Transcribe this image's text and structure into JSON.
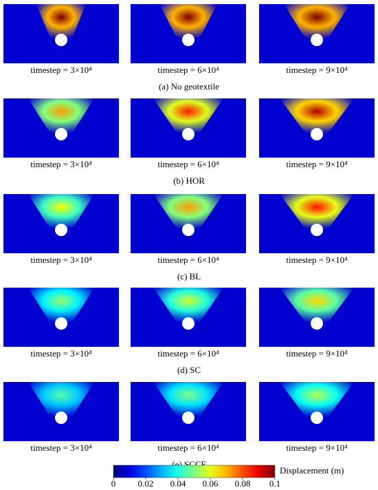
{
  "rows": [
    {
      "caption": "(a) No geotextile",
      "panels": [
        {
          "label": "timestep = 3×10⁴"
        },
        {
          "label": "timestep = 6×10⁴"
        },
        {
          "label": "timestep = 9×10⁴"
        }
      ]
    },
    {
      "caption": "(b) HOR",
      "panels": [
        {
          "label": "timestep = 3×10⁴"
        },
        {
          "label": "timestep = 6×10⁴"
        },
        {
          "label": "timestep = 9×10⁴"
        }
      ]
    },
    {
      "caption": "(c) BL",
      "panels": [
        {
          "label": "timestep = 3×10⁴"
        },
        {
          "label": "timestep = 6×10⁴"
        },
        {
          "label": "timestep = 9×10⁴"
        }
      ]
    },
    {
      "caption": "(d) SC",
      "panels": [
        {
          "label": "timestep = 3×10⁴"
        },
        {
          "label": "timestep = 6×10⁴"
        },
        {
          "label": "timestep = 9×10⁴"
        }
      ]
    },
    {
      "caption": "(e) SCCF",
      "panels": [
        {
          "label": "timestep = 3×10⁴"
        },
        {
          "label": "timestep = 6×10⁴"
        },
        {
          "label": "timestep = 9×10⁴"
        }
      ]
    }
  ],
  "colorbar": {
    "label": "Displacement (m)",
    "lim": [
      0,
      0.1
    ],
    "ticks": [
      0,
      0.02,
      0.04,
      0.06,
      0.08,
      0.1
    ]
  }
}
